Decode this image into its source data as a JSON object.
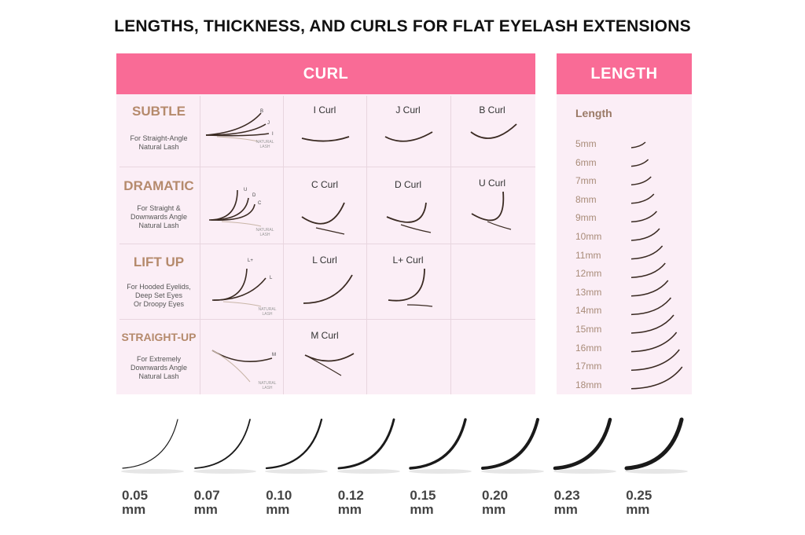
{
  "title": "LENGTHS, THICKNESS, AND CURLS FOR FLAT EYELASH EXTENSIONS",
  "curl_panel": {
    "header": "CURL",
    "natural_label_line1": "NATURAL",
    "natural_label_line2": "LASH",
    "rows": [
      {
        "name": "SUBTLE",
        "desc": [
          "For Straight-Angle",
          "Natural Lash"
        ],
        "compare_letters": [
          "B",
          "J",
          "I"
        ],
        "curls": [
          "I Curl",
          "J Curl",
          "B Curl"
        ]
      },
      {
        "name": "DRAMATIC",
        "desc": [
          "For Straight &",
          "Downwards Angle",
          "Natural Lash"
        ],
        "compare_letters": [
          "U",
          "D",
          "C"
        ],
        "curls": [
          "C Curl",
          "D Curl",
          "U Curl"
        ]
      },
      {
        "name": "LIFT UP",
        "desc": [
          "For Hooded Eyelids,",
          "Deep Set Eyes",
          "Or Droopy Eyes"
        ],
        "compare_letters": [
          "L+",
          "L"
        ],
        "curls": [
          "L Curl",
          "L+ Curl"
        ]
      },
      {
        "name": "STRAIGHT-UP",
        "desc": [
          "For Extremely",
          "Downwards Angle",
          "Natural Lash"
        ],
        "compare_letters": [
          "M"
        ],
        "curls": [
          "M Curl"
        ]
      }
    ]
  },
  "length_panel": {
    "header": "LENGTH",
    "subheader": "Length",
    "lengths": [
      "5mm",
      "6mm",
      "7mm",
      "8mm",
      "9mm",
      "10mm",
      "11mm",
      "12mm",
      "13mm",
      "14mm",
      "15mm",
      "16mm",
      "17mm",
      "18mm"
    ]
  },
  "thickness": {
    "unit": "mm",
    "values": [
      "0.05",
      "0.07",
      "0.10",
      "0.12",
      "0.15",
      "0.20",
      "0.23",
      "0.25"
    ]
  },
  "colors": {
    "pink_band": "#f96b96",
    "panel_bg": "#fbeef6",
    "brown_text": "#b58a6c",
    "lash": "#3a2a22"
  }
}
